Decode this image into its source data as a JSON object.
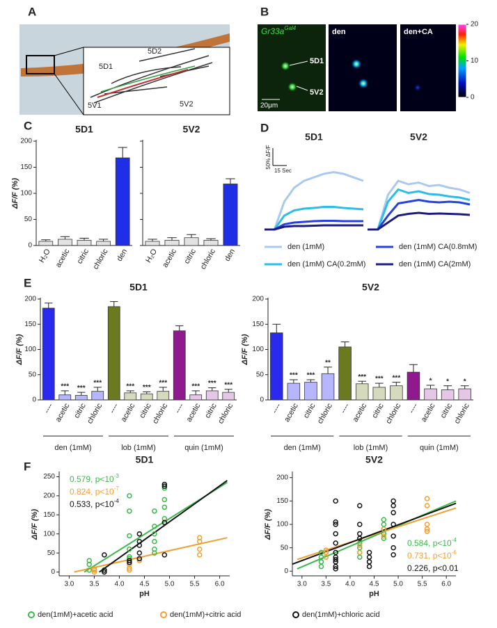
{
  "panels": {
    "labels": [
      "A",
      "B",
      "C",
      "D",
      "E",
      "F"
    ],
    "a_inset": [
      "5D2",
      "5D1",
      "5V1",
      "5V2"
    ],
    "b": {
      "gene": "Gr33a",
      "sup": "Gal4",
      "cell1": "5D1",
      "cell2": "5V2",
      "scale": "20μm",
      "img2": "den",
      "img3": "den+CA",
      "colorbar_ticks": [
        20,
        10,
        0
      ]
    },
    "d_scale": {
      "y": "50% ΔF/F",
      "x": "15 Sec"
    }
  },
  "chart_data": [
    {
      "type": "bar",
      "title": "5D1",
      "ylabel": "ΔF/F (%)",
      "categories": [
        "H₂O",
        "acetic",
        "citric",
        "chloric",
        "den"
      ],
      "values": [
        8,
        12,
        10,
        8,
        168
      ],
      "errors": [
        3,
        5,
        4,
        4,
        20
      ],
      "colors": [
        "#e2e2e2",
        "#e2e2e2",
        "#e2e2e2",
        "#e2e2e2",
        "#1f2fe8"
      ],
      "ylim": [
        0,
        200
      ],
      "yticks": [
        0,
        50,
        100,
        150,
        200
      ]
    },
    {
      "type": "bar",
      "title": "5V2",
      "categories": [
        "H₂O",
        "acetic",
        "citric",
        "chloric",
        "den"
      ],
      "values": [
        8,
        10,
        15,
        10,
        118
      ],
      "errors": [
        4,
        5,
        6,
        3,
        10
      ],
      "colors": [
        "#e2e2e2",
        "#e2e2e2",
        "#e2e2e2",
        "#e2e2e2",
        "#1f2fe8"
      ],
      "ylim": [
        0,
        200
      ],
      "yticks": [
        0,
        50,
        100,
        150,
        200
      ],
      "ytick_labels": false
    },
    {
      "type": "line",
      "title": "5D1",
      "x": [
        0,
        10,
        20,
        30,
        40,
        50,
        60,
        70,
        80,
        90,
        100
      ],
      "xlim": [
        0,
        100
      ],
      "ylim": [
        0,
        200
      ],
      "series": [
        {
          "name": "den (1mM)",
          "color": "#a9c9ef",
          "values": [
            0,
            0,
            80,
            120,
            140,
            150,
            160,
            165,
            160,
            150,
            140
          ]
        },
        {
          "name": "den (1mM) CA(0.2mM)",
          "color": "#2bbde6",
          "values": [
            0,
            0,
            40,
            55,
            60,
            62,
            65,
            65,
            62,
            60,
            58
          ]
        },
        {
          "name": "den (1mM) CA(0.8mM)",
          "color": "#2340e0",
          "values": [
            0,
            0,
            15,
            20,
            22,
            24,
            25,
            25,
            24,
            24,
            24
          ]
        },
        {
          "name": "den (1mM) CA(2mM)",
          "color": "#1b1b80",
          "values": [
            0,
            0,
            8,
            10,
            10,
            11,
            12,
            12,
            12,
            12,
            12
          ]
        }
      ]
    },
    {
      "type": "line",
      "title": "5V2",
      "x": [
        0,
        10,
        20,
        30,
        40,
        50,
        60,
        70,
        80,
        90,
        100
      ],
      "xlim": [
        0,
        100
      ],
      "ylim": [
        0,
        200
      ],
      "series": [
        {
          "color": "#a9c9ef",
          "values": [
            0,
            0,
            100,
            140,
            130,
            135,
            125,
            128,
            120,
            115,
            105
          ]
        },
        {
          "color": "#2bbde6",
          "values": [
            0,
            0,
            80,
            115,
            105,
            110,
            102,
            100,
            95,
            92,
            85
          ]
        },
        {
          "color": "#2340e0",
          "values": [
            0,
            0,
            40,
            75,
            80,
            85,
            80,
            78,
            80,
            78,
            72
          ]
        },
        {
          "color": "#1b1b80",
          "values": [
            0,
            0,
            20,
            40,
            45,
            48,
            45,
            46,
            45,
            44,
            42
          ]
        }
      ]
    },
    {
      "type": "bar",
      "title": "5D1",
      "ylabel": "ΔF/F (%)",
      "categories": [
        "----",
        "acetic",
        "citric",
        "chloric",
        "----",
        "acetic",
        "citric",
        "chloric",
        "----",
        "acetic",
        "citric",
        "chloric"
      ],
      "groups": [
        "den (1mM)",
        "lob (1mM)",
        "quin (1mM)"
      ],
      "values": [
        182,
        10,
        9,
        17,
        185,
        14,
        12,
        17,
        137,
        10,
        18,
        15
      ],
      "errors": [
        10,
        8,
        6,
        8,
        10,
        4,
        4,
        8,
        10,
        8,
        6,
        6
      ],
      "annotations": [
        null,
        "***",
        "***",
        "***",
        null,
        "***",
        "***",
        "***",
        null,
        "***",
        "***",
        "***"
      ],
      "colors": [
        "#2a2aee",
        "#b6b6ff",
        "#b6b6ff",
        "#b6b6ff",
        "#6b7a1e",
        "#d6dabd",
        "#d6dabd",
        "#d6dabd",
        "#8e1a8e",
        "#e6c6e6",
        "#e6c6e6",
        "#e6c6e6"
      ],
      "ylim": [
        0,
        200
      ],
      "yticks": [
        0,
        50,
        100,
        150,
        200
      ]
    },
    {
      "type": "bar",
      "title": "5V2",
      "ylabel": "ΔF/F (%)",
      "categories": [
        "----",
        "acetic",
        "citric",
        "chloric",
        "----",
        "acetic",
        "citric",
        "chloric",
        "----",
        "acetic",
        "citric",
        "chloric"
      ],
      "groups": [
        "den (1mM)",
        "lob (1mM)",
        "quin (1mM)"
      ],
      "values": [
        133,
        33,
        35,
        52,
        105,
        32,
        25,
        28,
        55,
        22,
        20,
        22
      ],
      "errors": [
        17,
        7,
        5,
        13,
        10,
        5,
        8,
        7,
        15,
        7,
        8,
        6
      ],
      "annotations": [
        null,
        "***",
        "***",
        "**",
        null,
        "***",
        "***",
        "***",
        null,
        "*",
        "*",
        "*"
      ],
      "colors": [
        "#2a2aee",
        "#b6b6ff",
        "#b6b6ff",
        "#b6b6ff",
        "#6b7a1e",
        "#d6dabd",
        "#d6dabd",
        "#d6dabd",
        "#8e1a8e",
        "#e6c6e6",
        "#e6c6e6",
        "#e6c6e6"
      ],
      "ylim": [
        0,
        200
      ],
      "yticks": [
        0,
        50,
        100,
        150,
        200
      ]
    },
    {
      "type": "scatter",
      "title": "5D1",
      "xlabel": "pH",
      "ylabel": "ΔF/F (%)",
      "xlim": [
        2.8,
        6.2
      ],
      "ylim": [
        -10,
        260
      ],
      "xticks": [
        {
          "value": 3,
          "label": "3.0"
        },
        3.5,
        {
          "value": 4,
          "label": "4.0"
        },
        4.5,
        {
          "value": 5,
          "label": "5.0"
        },
        5.5,
        {
          "value": 6,
          "label": "6.0"
        }
      ],
      "yticks": [
        0,
        50,
        100,
        150,
        200,
        250
      ],
      "series": [
        {
          "name": "den(1mM)+acetic acid",
          "color": "#3cb84a",
          "x": [
            3.4,
            3.4,
            3.4,
            3.7,
            3.7,
            4.2,
            4.2,
            4.2,
            4.2,
            4.2,
            4.2,
            4.7,
            4.7,
            4.7,
            4.7,
            4.7,
            4.7,
            4.9,
            4.9,
            4.9,
            4.9
          ],
          "values": [
            30,
            20,
            5,
            0,
            5,
            200,
            160,
            95,
            60,
            40,
            35,
            160,
            120,
            100,
            80,
            60,
            50,
            220,
            190,
            170,
            140
          ]
        },
        {
          "name": "den(1mM)+citric acid",
          "color": "#f0a030",
          "x": [
            3.5,
            3.5,
            3.5,
            4.2,
            4.2,
            4.2,
            4.4,
            5.6,
            5.6,
            5.6,
            5.6
          ],
          "values": [
            5,
            8,
            0,
            20,
            10,
            5,
            30,
            90,
            80,
            60,
            45
          ]
        },
        {
          "name": "den(1mM)+chloric acid",
          "color": "#111111",
          "x": [
            3.7,
            3.7,
            3.7,
            4.2,
            4.2,
            4.4,
            4.4,
            4.4,
            4.4,
            4.4,
            4.9,
            4.9,
            4.9,
            4.9
          ],
          "values": [
            45,
            5,
            0,
            30,
            25,
            100,
            80,
            70,
            50,
            35,
            230,
            225,
            130,
            45
          ]
        }
      ],
      "fit_lines": [
        {
          "color": "#3cb84a",
          "x": [
            3.3,
            6.15
          ],
          "y": [
            0,
            235
          ]
        },
        {
          "color": "#f0a030",
          "x": [
            3.1,
            6.15
          ],
          "y": [
            0,
            90
          ]
        },
        {
          "color": "#111111",
          "x": [
            3.6,
            6.15
          ],
          "y": [
            0,
            240
          ]
        }
      ],
      "annotations": [
        {
          "text": "0.579, p<10",
          "sup": "-3",
          "color": "#3cb84a"
        },
        {
          "text": "0.824, p<10",
          "sup": "-7",
          "color": "#f0a030"
        },
        {
          "text": "0.533, p<10",
          "sup": "-4",
          "color": "#111111"
        }
      ]
    },
    {
      "type": "scatter",
      "title": "5V2",
      "xlabel": "pH",
      "ylabel": "ΔF/F (%)",
      "xlim": [
        2.8,
        6.2
      ],
      "ylim": [
        -10,
        210
      ],
      "xticks": [
        {
          "value": 3,
          "label": "3.0"
        },
        3.5,
        {
          "value": 4,
          "label": "4.0"
        },
        4.5,
        {
          "value": 5,
          "label": "5.0"
        },
        5.5,
        {
          "value": 6,
          "label": "6.0"
        }
      ],
      "yticks": [
        0,
        50,
        100,
        150,
        200
      ],
      "series": [
        {
          "color": "#3cb84a",
          "x": [
            3.4,
            3.4,
            3.4,
            3.4,
            4.2,
            4.2,
            4.2,
            4.2,
            4.7,
            4.7,
            4.7,
            4.7,
            4.7
          ],
          "values": [
            40,
            30,
            20,
            10,
            60,
            50,
            40,
            30,
            110,
            100,
            90,
            80,
            70
          ]
        },
        {
          "color": "#f0a030",
          "x": [
            3.5,
            3.5,
            3.5,
            4.2,
            4.2,
            4.2,
            4.7,
            4.7,
            5.6,
            5.6,
            5.6,
            5.6,
            5.6
          ],
          "values": [
            45,
            40,
            30,
            70,
            55,
            40,
            90,
            75,
            155,
            140,
            100,
            90,
            85
          ]
        },
        {
          "color": "#111111",
          "x": [
            3.7,
            3.7,
            3.7,
            3.7,
            3.7,
            3.7,
            3.7,
            3.7,
            3.7,
            3.7,
            3.7,
            4.2,
            4.2,
            4.2,
            4.2,
            4.4,
            4.4,
            4.4,
            4.4,
            4.9,
            4.9,
            4.9,
            4.9,
            4.9,
            4.9,
            4.9
          ],
          "values": [
            150,
            105,
            100,
            80,
            60,
            40,
            30,
            25,
            20,
            10,
            5,
            140,
            100,
            80,
            70,
            40,
            30,
            20,
            10,
            150,
            140,
            125,
            100,
            75,
            50,
            35
          ]
        }
      ],
      "fit_lines": [
        {
          "color": "#3cb84a",
          "x": [
            2.9,
            6.2
          ],
          "y": [
            5,
            150
          ]
        },
        {
          "color": "#f0a030",
          "x": [
            2.9,
            6.2
          ],
          "y": [
            25,
            135
          ]
        },
        {
          "color": "#111111",
          "x": [
            2.8,
            6.2
          ],
          "y": [
            15,
            145
          ]
        }
      ],
      "annotations": [
        {
          "text": "0.584, p<10",
          "sup": "-4",
          "color": "#3cb84a"
        },
        {
          "text": "0.731, p<10",
          "sup": "-6",
          "color": "#f0a030"
        },
        {
          "text": "0.226, p<0.01",
          "color": "#111111"
        }
      ]
    }
  ]
}
